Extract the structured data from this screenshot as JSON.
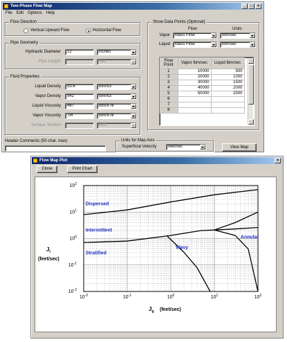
{
  "main_window": {
    "title": "Two-Phase Flow Map",
    "menu": [
      "File",
      "Edit",
      "Options",
      "Help"
    ],
    "flow_direction": {
      "label": "Flow Direction",
      "option_vertical": "Vertical Upward Flow",
      "option_horizontal": "Horizontal Flow",
      "selected": "horizontal"
    },
    "pipe_geometry": {
      "label": "Pipe Geometry",
      "hydraulic_diameter_label": "Hydraulic Diameter",
      "hydraulic_diameter_value": "12",
      "hydraulic_diameter_unit": "inches",
      "pipe_length_label": "Pipe Length",
      "pipe_length_value": "",
      "pipe_length_unit": "feet"
    },
    "fluid_properties": {
      "label": "Fluid Properties",
      "rows": [
        {
          "label": "Liquid Density",
          "value": "53.6",
          "unit": "lbm/ft3",
          "enabled": true
        },
        {
          "label": "Vapor Density",
          "value": "542",
          "unit": "lbm/ft3",
          "enabled": true
        },
        {
          "label": "Liquid Viscosity",
          "value": "467",
          "unit": "lbm/ft-hr",
          "enabled": true
        },
        {
          "label": "Vapor Viscosity",
          "value": ".04",
          "unit": "lbm/ft-hr",
          "enabled": true
        },
        {
          "label": "Surface Tension",
          "value": "",
          "unit": "lbf/ft",
          "enabled": false
        }
      ]
    },
    "data_points": {
      "label": "Show Data Points (Optional)",
      "col_flow": "Flow",
      "col_units": "Units",
      "vapor_label": "Vapor",
      "vapor_flow": "Mass Flow",
      "vapor_units": "lbm/sec",
      "liquid_label": "Liquid",
      "liquid_flow": "Mass Flow",
      "liquid_units": "lbm/sec",
      "table_headers": [
        "Flow Point",
        "Vapor lbm/sec",
        "Liquid lbm/sec"
      ],
      "table_rows": [
        {
          "point": "1",
          "vapor": "10000",
          "liquid": "500"
        },
        {
          "point": "2",
          "vapor": "20000",
          "liquid": "1000"
        },
        {
          "point": "3",
          "vapor": "30000",
          "liquid": "1500"
        },
        {
          "point": "4",
          "vapor": "40000",
          "liquid": "2000"
        },
        {
          "point": "5",
          "vapor": "50000",
          "liquid": "2500"
        },
        {
          "point": "6",
          "vapor": "",
          "liquid": ""
        },
        {
          "point": "7",
          "vapor": "",
          "liquid": ""
        },
        {
          "point": "8",
          "vapor": "",
          "liquid": ""
        }
      ]
    },
    "header_comments": {
      "label": "Header Comments (50 char. max)",
      "value": ""
    },
    "map_axis": {
      "label": "Units for Map Axis",
      "field_label": "Superficial Velocity",
      "value": "feet/sec"
    },
    "view_map_button": "View Map"
  },
  "plot_window": {
    "title": "Flow Map Plot",
    "close_button": "Close",
    "print_button": "Print Chart"
  },
  "chart_data": {
    "type": "line",
    "xscale": "log",
    "yscale": "log",
    "xlim": [
      0.01,
      100
    ],
    "ylim": [
      0.01,
      100
    ],
    "xlabel_main": "J",
    "xlabel_sub": "g",
    "xlabel_units": "(feet/sec)",
    "ylabel_main": "J",
    "ylabel_sub": "l",
    "ylabel_units": "(feet/sec)",
    "x_ticks": [
      {
        "value": 0.01,
        "base": "10",
        "exp": "-2"
      },
      {
        "value": 0.1,
        "base": "10",
        "exp": "-1"
      },
      {
        "value": 1,
        "base": "10",
        "exp": "0"
      },
      {
        "value": 10,
        "base": "10",
        "exp": "1"
      },
      {
        "value": 100,
        "base": "10",
        "exp": "2"
      }
    ],
    "y_ticks": [
      {
        "value": 0.01,
        "base": "10",
        "exp": "-2"
      },
      {
        "value": 0.1,
        "base": "10",
        "exp": "-1"
      },
      {
        "value": 1,
        "base": "10",
        "exp": "0"
      },
      {
        "value": 10,
        "base": "10",
        "exp": "1"
      },
      {
        "value": 100,
        "base": "10",
        "exp": "2"
      }
    ],
    "grid": true,
    "region_labels": [
      {
        "text": "Dispersed",
        "x": 0.011,
        "y": 18
      },
      {
        "text": "Intermittent",
        "x": 0.011,
        "y": 1.8
      },
      {
        "text": "Stratified",
        "x": 0.011,
        "y": 0.25
      },
      {
        "text": "Wavy",
        "x": 1.3,
        "y": 0.4
      },
      {
        "text": "Annular",
        "x": 40,
        "y": 1.0
      }
    ],
    "curves": [
      {
        "name": "dispersed-boundary",
        "points": [
          [
            0.01,
            8
          ],
          [
            0.1,
            12
          ],
          [
            1,
            24
          ],
          [
            10,
            45
          ],
          [
            100,
            70
          ]
        ]
      },
      {
        "name": "intermittent-stratified-boundary",
        "points": [
          [
            0.01,
            0.7
          ],
          [
            0.1,
            0.8
          ],
          [
            1,
            1.3
          ],
          [
            5,
            2.0
          ],
          [
            10,
            2.1
          ],
          [
            30,
            2.3
          ],
          [
            100,
            2.6
          ]
        ]
      },
      {
        "name": "annular-upper-boundary",
        "points": [
          [
            10,
            2.1
          ],
          [
            30,
            4
          ],
          [
            100,
            10
          ]
        ]
      },
      {
        "name": "annular-lower-boundary",
        "points": [
          [
            10,
            2.1
          ],
          [
            30,
            1.3
          ],
          [
            60,
            0.4
          ],
          [
            100,
            0.01
          ]
        ]
      },
      {
        "name": "wavy-boundary",
        "points": [
          [
            0.8,
            1.3
          ],
          [
            2,
            0.3
          ],
          [
            4,
            0.08
          ],
          [
            8,
            0.01
          ]
        ]
      }
    ]
  }
}
